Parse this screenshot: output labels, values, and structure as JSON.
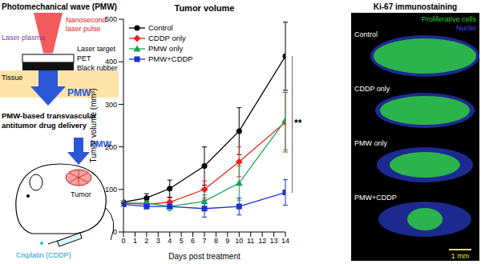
{
  "diagram": {
    "title": "Photomechanical wave (PMW)",
    "laser": "Nanosecond laser pulse",
    "plasma": "Laser plasma",
    "target": "Laser target",
    "layers": [
      "PET",
      "Black rubber"
    ],
    "tissue": "Tissue",
    "wave": "PMW",
    "caption": "PMW-based transvascular antitumor drug delivery",
    "tumor": "Tumor",
    "drug": "Cisplatin (CDDP)"
  },
  "chart_data": {
    "type": "line",
    "title": "Tumor volume",
    "x_label": "Days post treatment",
    "y_label": "Tumor volume (mm³)",
    "x": [
      0,
      2,
      4,
      7,
      10,
      14
    ],
    "xlim": [
      0,
      14
    ],
    "xticks": [
      0,
      1,
      2,
      3,
      4,
      5,
      6,
      7,
      8,
      9,
      10,
      11,
      12,
      13,
      14
    ],
    "ylim": [
      0,
      500
    ],
    "yticks": [
      0,
      100,
      200,
      300,
      400,
      500
    ],
    "legend": "upper left",
    "annotation": "**",
    "series": [
      {
        "name": "Control",
        "color": "#000000",
        "marker": "circle",
        "values": [
          70,
          80,
          102,
          155,
          237,
          413
        ],
        "errors": [
          3,
          10,
          20,
          45,
          55,
          80
        ]
      },
      {
        "name": "CDDP only",
        "color": "#e8221b",
        "marker": "diamond",
        "values": [
          68,
          65,
          70,
          100,
          165,
          258
        ],
        "errors": [
          4,
          8,
          10,
          20,
          35,
          70
        ]
      },
      {
        "name": "PMW only",
        "color": "#1aa356",
        "marker": "triangle",
        "values": [
          68,
          68,
          60,
          72,
          115,
          263
        ],
        "errors": [
          4,
          5,
          10,
          15,
          40,
          70
        ]
      },
      {
        "name": "PMW+CDDP",
        "color": "#1a2fd6",
        "marker": "square",
        "values": [
          65,
          60,
          60,
          55,
          60,
          93
        ],
        "errors": [
          4,
          5,
          5,
          20,
          20,
          30
        ]
      }
    ]
  },
  "immunostaining": {
    "title": "Ki-67 immunostaining",
    "legend": [
      {
        "label": "Proliferative cells",
        "color": "#2ecc40"
      },
      {
        "label": "Nuclei",
        "color": "#3050ff"
      }
    ],
    "panels": [
      "Control",
      "CDDP only",
      "PMW only",
      "PMW+CDDP"
    ],
    "scale_bar": "1 mm"
  }
}
